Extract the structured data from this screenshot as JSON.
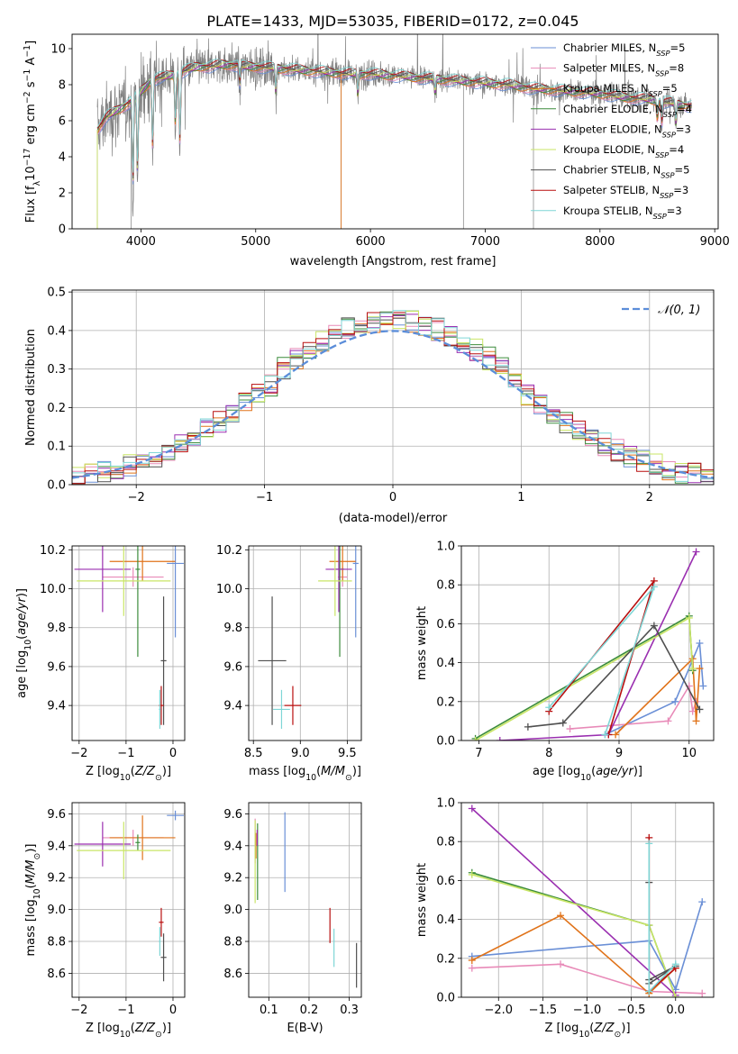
{
  "figure_title": "PLATE=1433, MJD=53035, FIBERID=0172, z=0.045",
  "colors": {
    "Chabrier MILES": "#6a8fd6",
    "Salpeter MILES": "#e88ab8",
    "Kroupa MILES": "#e0731a",
    "Chabrier ELODIE": "#3c8c3c",
    "Salpeter ELODIE": "#9a2fb0",
    "Kroupa ELODIE": "#c9e566",
    "Chabrier STELIB": "#505050",
    "Salpeter STELIB": "#b80f0f",
    "Kroupa STELIB": "#7fd6d6",
    "data": "#808080",
    "normal": "#5b8dd9",
    "grid": "#b0b0b0"
  },
  "chart_data": [
    {
      "type": "line",
      "title": "PLATE=1433, MJD=53035, FIBERID=0172, z=0.045",
      "xlabel": "wavelength [Angstrom, rest frame]",
      "ylabel": "Flux [f_λ 10^-17 erg cm^-2 s^-1 A^-1]",
      "xlim": [
        3400,
        9030
      ],
      "ylim": [
        0,
        10.8
      ],
      "xticks": [
        4000,
        5000,
        6000,
        7000,
        8000,
        9000
      ],
      "yticks": [
        0,
        2,
        4,
        6,
        8,
        10
      ],
      "grid": false,
      "legend_position": "upper right",
      "legend": [
        {
          "label": "Chabrier MILES",
          "nssp": "5"
        },
        {
          "label": "Salpeter MILES",
          "nssp": "8"
        },
        {
          "label": "Kroupa MILES",
          "nssp": "5"
        },
        {
          "label": "Chabrier ELODIE",
          "nssp": "4"
        },
        {
          "label": "Salpeter ELODIE",
          "nssp": "3"
        },
        {
          "label": "Kroupa ELODIE",
          "nssp": "4"
        },
        {
          "label": "Chabrier STELIB",
          "nssp": "5"
        },
        {
          "label": "Salpeter STELIB",
          "nssp": "3"
        },
        {
          "label": "Kroupa STELIB",
          "nssp": "3"
        }
      ],
      "continuum": {
        "x": [
          3620,
          3700,
          3800,
          3900,
          4000,
          4100,
          4200,
          4300,
          4400,
          4500,
          4600,
          4700,
          4800,
          4900,
          5000,
          5200,
          5400,
          5600,
          5800,
          6000,
          6200,
          6400,
          6600,
          6800,
          7000,
          7200,
          7400,
          7600,
          7800,
          8000,
          8200,
          8400,
          8600,
          8800
        ],
        "y": [
          5.5,
          6.2,
          6.6,
          7.0,
          7.6,
          8.3,
          8.4,
          8.6,
          8.8,
          9.0,
          9.0,
          9.1,
          9.1,
          9.0,
          9.0,
          8.9,
          8.8,
          8.7,
          8.6,
          8.6,
          8.5,
          8.4,
          8.3,
          8.2,
          8.1,
          8.0,
          7.8,
          7.7,
          7.6,
          7.5,
          7.3,
          7.2,
          7.0,
          6.8
        ]
      },
      "absorption_lines": [
        {
          "x": 3930,
          "depth": 5.5
        },
        {
          "x": 3970,
          "depth": 5.0
        },
        {
          "x": 4102,
          "depth": 4.4
        },
        {
          "x": 4300,
          "depth": 3.2
        },
        {
          "x": 4340,
          "depth": 4.3
        },
        {
          "x": 4861,
          "depth": 1.2
        },
        {
          "x": 5175,
          "depth": 1.5
        },
        {
          "x": 5890,
          "depth": 1.3
        },
        {
          "x": 6563,
          "depth": 0.9
        },
        {
          "x": 8500,
          "depth": 1.1
        },
        {
          "x": 8540,
          "depth": 1.3
        },
        {
          "x": 8662,
          "depth": 1.3
        }
      ],
      "masked_spikes_to_zero": [
        3620,
        3915,
        5745,
        6810,
        7420
      ]
    },
    {
      "type": "step_histogram",
      "xlabel": "(data-model)/error",
      "ylabel": "Normed distribution",
      "xlim": [
        -2.5,
        2.5
      ],
      "ylim": [
        0,
        0.505
      ],
      "xticks": [
        -2,
        -1,
        0,
        1,
        2
      ],
      "yticks": [
        0.0,
        0.1,
        0.2,
        0.3,
        0.4,
        0.5
      ],
      "grid": true,
      "legend_position": "upper right",
      "legend": [
        {
          "label": "𝒩(0, 1)",
          "style": "dashed"
        }
      ],
      "bin_range": [
        -2.5,
        2.5
      ],
      "bin_count": 50,
      "reference_curve": "standard normal density"
    },
    {
      "type": "scatter_errorbars",
      "xlabel": "Z [log10(Z/Z⊙)]",
      "ylabel": "age  [log10(age/yr)]",
      "xlim": [
        -2.15,
        0.25
      ],
      "ylim": [
        9.22,
        10.22
      ],
      "xticks": [
        -2,
        -1,
        0
      ],
      "yticks": [
        9.4,
        9.6,
        9.8,
        10.0,
        10.2
      ],
      "grid": true,
      "points": [
        {
          "model": "Chabrier MILES",
          "x": 0.05,
          "xerr": 0.18,
          "y": 10.13,
          "yerr": 0.38
        },
        {
          "model": "Salpeter MILES",
          "x": -0.85,
          "xerr": 0.65,
          "y": 10.06,
          "yerr": 0.05
        },
        {
          "model": "Kroupa MILES",
          "x": -0.65,
          "xerr": 0.7,
          "y": 10.14,
          "yerr": 0.1
        },
        {
          "model": "Chabrier ELODIE",
          "x": -0.75,
          "xerr": 0.05,
          "y": 10.1,
          "yerr": 0.45
        },
        {
          "model": "Salpeter ELODIE",
          "x": -1.5,
          "xerr": 0.6,
          "y": 10.1,
          "yerr": 0.22
        },
        {
          "model": "Kroupa ELODIE",
          "x": -1.05,
          "xerr": 1.0,
          "y": 10.04,
          "yerr": 0.18
        },
        {
          "model": "Chabrier STELIB",
          "x": -0.2,
          "xerr": 0.06,
          "y": 9.63,
          "yerr": 0.33
        },
        {
          "model": "Salpeter STELIB",
          "x": -0.25,
          "xerr": 0.05,
          "y": 9.4,
          "yerr": 0.1
        },
        {
          "model": "Kroupa STELIB",
          "x": -0.28,
          "xerr": 0.02,
          "y": 9.38,
          "yerr": 0.1
        }
      ]
    },
    {
      "type": "scatter_errorbars",
      "xlabel": "mass [log10(M/M⊙)]",
      "ylabel": "",
      "xlim": [
        8.45,
        9.65
      ],
      "ylim": [
        9.22,
        10.22
      ],
      "xticks": [
        8.5,
        9.0,
        9.5
      ],
      "yticks": [
        9.4,
        9.6,
        9.8,
        10.0,
        10.2
      ],
      "grid": true,
      "points": [
        {
          "model": "Chabrier MILES",
          "x": 9.59,
          "xerr": 0.03,
          "y": 10.13,
          "yerr": 0.38
        },
        {
          "model": "Salpeter MILES",
          "x": 9.45,
          "xerr": 0.05,
          "y": 10.06,
          "yerr": 0.05
        },
        {
          "model": "Kroupa MILES",
          "x": 9.45,
          "xerr": 0.14,
          "y": 10.14,
          "yerr": 0.1
        },
        {
          "model": "Chabrier ELODIE",
          "x": 9.42,
          "xerr": 0.05,
          "y": 10.1,
          "yerr": 0.45
        },
        {
          "model": "Salpeter ELODIE",
          "x": 9.41,
          "xerr": 0.14,
          "y": 10.1,
          "yerr": 0.22
        },
        {
          "model": "Kroupa ELODIE",
          "x": 9.37,
          "xerr": 0.18,
          "y": 10.04,
          "yerr": 0.18
        },
        {
          "model": "Chabrier STELIB",
          "x": 8.7,
          "xerr": 0.15,
          "y": 9.63,
          "yerr": 0.33
        },
        {
          "model": "Salpeter STELIB",
          "x": 8.92,
          "xerr": 0.09,
          "y": 9.4,
          "yerr": 0.1
        },
        {
          "model": "Kroupa STELIB",
          "x": 8.8,
          "xerr": 0.09,
          "y": 9.38,
          "yerr": 0.1
        }
      ]
    },
    {
      "type": "line_scatter",
      "xlabel": "age  [log10(age/yr)]",
      "ylabel": "mass weight",
      "xlim": [
        6.75,
        10.35
      ],
      "ylim": [
        0,
        1.0
      ],
      "xticks": [
        7,
        8,
        9,
        10
      ],
      "yticks": [
        0.0,
        0.2,
        0.4,
        0.6,
        0.8,
        1.0
      ],
      "grid": true,
      "series": [
        {
          "model": "Chabrier MILES",
          "points": [
            [
              8.8,
              0.03
            ],
            [
              9.8,
              0.2
            ],
            [
              10.15,
              0.5
            ],
            [
              10.2,
              0.28
            ]
          ]
        },
        {
          "model": "Salpeter MILES",
          "points": [
            [
              8.3,
              0.06
            ],
            [
              9.7,
              0.1
            ],
            [
              10.0,
              0.28
            ],
            [
              10.05,
              0.15
            ],
            [
              10.1,
              0.2
            ]
          ]
        },
        {
          "model": "Kroupa MILES",
          "points": [
            [
              8.95,
              0.03
            ],
            [
              10.05,
              0.42
            ],
            [
              10.1,
              0.1
            ],
            [
              10.15,
              0.37
            ]
          ]
        },
        {
          "model": "Chabrier ELODIE",
          "points": [
            [
              6.95,
              0.01
            ],
            [
              10.0,
              0.64
            ],
            [
              10.05,
              0.36
            ]
          ]
        },
        {
          "model": "Salpeter ELODIE",
          "points": [
            [
              7.3,
              0.0
            ],
            [
              8.85,
              0.03
            ],
            [
              10.1,
              0.97
            ]
          ]
        },
        {
          "model": "Kroupa ELODIE",
          "points": [
            [
              6.95,
              0.0
            ],
            [
              10.0,
              0.63
            ],
            [
              10.05,
              0.37
            ]
          ]
        },
        {
          "model": "Chabrier STELIB",
          "points": [
            [
              7.7,
              0.07
            ],
            [
              8.2,
              0.09
            ],
            [
              9.5,
              0.59
            ],
            [
              10.15,
              0.16
            ]
          ]
        },
        {
          "model": "Salpeter STELIB",
          "points": [
            [
              8.85,
              0.03
            ],
            [
              9.5,
              0.82
            ],
            [
              8.0,
              0.15
            ]
          ]
        },
        {
          "model": "Kroupa STELIB",
          "points": [
            [
              8.8,
              0.03
            ],
            [
              9.5,
              0.79
            ],
            [
              8.0,
              0.17
            ]
          ]
        }
      ]
    },
    {
      "type": "scatter_errorbars",
      "xlabel": "Z [log10(Z/Z⊙)]",
      "ylabel": "mass [log10(M/M⊙)]",
      "xlim": [
        -2.15,
        0.25
      ],
      "ylim": [
        8.45,
        9.67
      ],
      "xticks": [
        -2,
        -1,
        0
      ],
      "yticks": [
        8.6,
        8.8,
        9.0,
        9.2,
        9.4,
        9.6
      ],
      "grid": true,
      "points": [
        {
          "model": "Chabrier MILES",
          "x": 0.05,
          "xerr": 0.18,
          "y": 9.59,
          "yerr": 0.03
        },
        {
          "model": "Salpeter MILES",
          "x": -0.85,
          "xerr": 0.65,
          "y": 9.45,
          "yerr": 0.05
        },
        {
          "model": "Kroupa MILES",
          "x": -0.65,
          "xerr": 0.7,
          "y": 9.45,
          "yerr": 0.14
        },
        {
          "model": "Chabrier ELODIE",
          "x": -0.75,
          "xerr": 0.05,
          "y": 9.42,
          "yerr": 0.05
        },
        {
          "model": "Salpeter ELODIE",
          "x": -1.5,
          "xerr": 0.6,
          "y": 9.41,
          "yerr": 0.14
        },
        {
          "model": "Kroupa ELODIE",
          "x": -1.05,
          "xerr": 1.0,
          "y": 9.37,
          "yerr": 0.18
        },
        {
          "model": "Chabrier STELIB",
          "x": -0.2,
          "xerr": 0.06,
          "y": 8.7,
          "yerr": 0.15
        },
        {
          "model": "Salpeter STELIB",
          "x": -0.25,
          "xerr": 0.05,
          "y": 8.92,
          "yerr": 0.09
        },
        {
          "model": "Kroupa STELIB",
          "x": -0.28,
          "xerr": 0.02,
          "y": 8.8,
          "yerr": 0.09
        }
      ]
    },
    {
      "type": "scatter_errorbars",
      "xlabel": "E(B-V)",
      "ylabel": "",
      "xlim": [
        0.05,
        0.33
      ],
      "ylim": [
        8.45,
        9.67
      ],
      "xticks": [
        0.1,
        0.2,
        0.3
      ],
      "yticks": [
        8.6,
        8.8,
        9.0,
        9.2,
        9.4,
        9.6
      ],
      "grid": true,
      "points": [
        {
          "model": "Chabrier MILES",
          "x": 0.14,
          "y": 9.36,
          "yerr": 0.25
        },
        {
          "model": "Salpeter MILES",
          "x": 0.066,
          "y": 9.43,
          "yerr": 0.14
        },
        {
          "model": "Kroupa MILES",
          "x": 0.068,
          "y": 9.4,
          "yerr": 0.08
        },
        {
          "model": "Chabrier ELODIE",
          "x": 0.072,
          "y": 9.3,
          "yerr": 0.24
        },
        {
          "model": "Salpeter ELODIE",
          "x": 0.071,
          "y": 9.45,
          "yerr": 0.05
        },
        {
          "model": "Kroupa ELODIE",
          "x": 0.066,
          "y": 9.3,
          "yerr": 0.26
        },
        {
          "model": "Chabrier STELIB",
          "x": 0.318,
          "y": 8.65,
          "yerr": 0.14
        },
        {
          "model": "Salpeter STELIB",
          "x": 0.252,
          "y": 8.9,
          "yerr": 0.11
        },
        {
          "model": "Kroupa STELIB",
          "x": 0.262,
          "y": 8.76,
          "yerr": 0.12
        }
      ]
    },
    {
      "type": "line_scatter",
      "xlabel": "Z [log10(Z/Z⊙)]",
      "ylabel": "mass weight",
      "xlim": [
        -2.42,
        0.43
      ],
      "ylim": [
        0,
        1.0
      ],
      "xticks": [
        -2.0,
        -1.5,
        -1.0,
        -0.5,
        0.0
      ],
      "yticks": [
        0.0,
        0.2,
        0.4,
        0.6,
        0.8,
        1.0
      ],
      "grid": true,
      "series": [
        {
          "model": "Chabrier MILES",
          "points": [
            [
              -2.3,
              0.21
            ],
            [
              -0.3,
              0.29
            ],
            [
              0.0,
              0.04
            ],
            [
              0.3,
              0.49
            ]
          ]
        },
        {
          "model": "Salpeter MILES",
          "points": [
            [
              -2.3,
              0.15
            ],
            [
              -1.3,
              0.17
            ],
            [
              -0.3,
              0.03
            ],
            [
              0.3,
              0.02
            ]
          ]
        },
        {
          "model": "Kroupa MILES",
          "points": [
            [
              -2.3,
              0.19
            ],
            [
              -1.3,
              0.42
            ],
            [
              -0.3,
              0.02
            ],
            [
              0.0,
              0.15
            ]
          ]
        },
        {
          "model": "Chabrier ELODIE",
          "points": [
            [
              -2.3,
              0.64
            ],
            [
              -0.3,
              0.37
            ],
            [
              0.0,
              0.0
            ]
          ]
        },
        {
          "model": "Salpeter ELODIE",
          "points": [
            [
              -2.3,
              0.97
            ],
            [
              0.0,
              0.01
            ]
          ]
        },
        {
          "model": "Kroupa ELODIE",
          "points": [
            [
              -2.3,
              0.63
            ],
            [
              -0.3,
              0.37
            ],
            [
              0.0,
              0.0
            ]
          ]
        },
        {
          "model": "Chabrier STELIB",
          "points": [
            [
              -0.3,
              0.59
            ],
            [
              -0.3,
              0.09
            ],
            [
              0.0,
              0.16
            ],
            [
              -0.3,
              0.07
            ]
          ]
        },
        {
          "model": "Salpeter STELIB",
          "points": [
            [
              -0.3,
              0.82
            ],
            [
              -0.3,
              0.03
            ],
            [
              0.0,
              0.15
            ]
          ]
        },
        {
          "model": "Kroupa STELIB",
          "points": [
            [
              -0.3,
              0.79
            ],
            [
              -0.3,
              0.03
            ],
            [
              0.0,
              0.17
            ]
          ]
        }
      ]
    }
  ]
}
